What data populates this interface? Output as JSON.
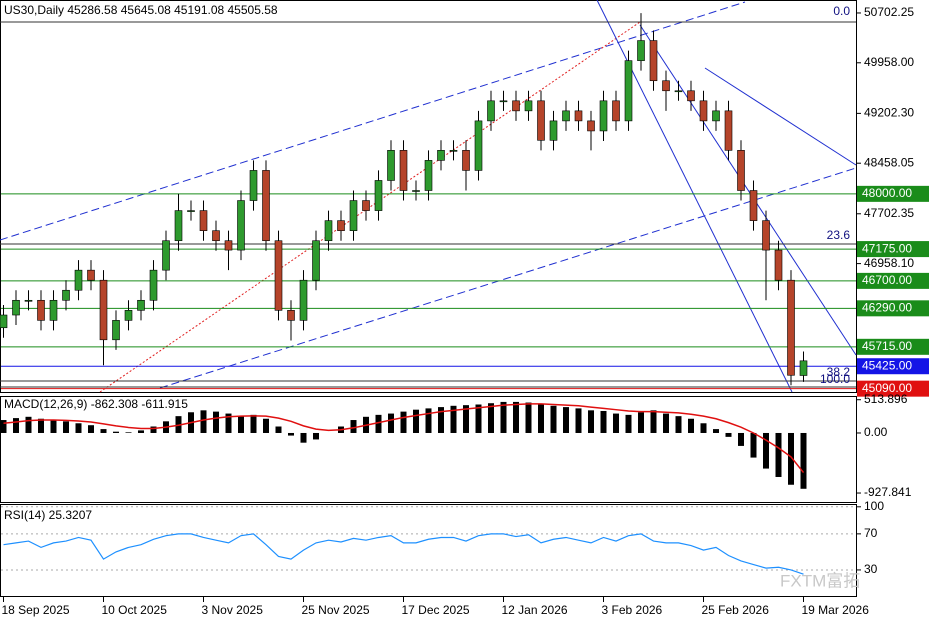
{
  "chart_data": [
    {
      "type": "candlestick",
      "title": "US30,Daily 45286.58 45645.08 45191.08 45505.58",
      "categories": [
        "18 Sep 2025",
        null,
        null,
        null,
        null,
        null,
        null,
        null,
        "10 Oct 2025",
        null,
        null,
        null,
        null,
        null,
        null,
        null,
        "3 Nov 2025",
        null,
        null,
        null,
        null,
        null,
        null,
        null,
        "25 Nov 2025",
        null,
        null,
        null,
        null,
        null,
        null,
        null,
        "17 Dec 2025",
        null,
        null,
        null,
        null,
        null,
        null,
        null,
        "12 Jan 2026",
        null,
        null,
        null,
        null,
        null,
        null,
        null,
        "3 Feb 2026",
        null,
        null,
        null,
        null,
        null,
        null,
        null,
        "25 Feb 2026",
        null,
        null,
        null,
        null,
        null,
        null,
        null,
        "19 Mar 2026"
      ],
      "open": [
        46000,
        46190,
        46410,
        46410,
        46110,
        46410,
        46560,
        46860,
        46710,
        45820,
        46110,
        46260,
        46410,
        46860,
        47300,
        47750,
        47750,
        47450,
        47300,
        47160,
        47900,
        48350,
        47300,
        46260,
        46110,
        46710,
        47300,
        47600,
        47450,
        47900,
        47750,
        48200,
        48650,
        48050,
        48050,
        48500,
        48650,
        48650,
        48350,
        49090,
        49390,
        49390,
        49240,
        49390,
        48800,
        49090,
        49240,
        49090,
        48940,
        49390,
        49090,
        49990,
        50290,
        49690,
        49540,
        49540,
        49390,
        49090,
        49240,
        48650,
        48050,
        47600,
        47160,
        46710,
        45286.58
      ],
      "high": [
        46340,
        46560,
        46560,
        46560,
        46560,
        46710,
        47010,
        47010,
        46860,
        46260,
        46410,
        46560,
        47010,
        47450,
        48000,
        47900,
        47900,
        47600,
        47450,
        48050,
        48500,
        48500,
        47450,
        46410,
        46860,
        47450,
        47750,
        47750,
        48050,
        48050,
        48350,
        48800,
        48800,
        48200,
        48650,
        48800,
        48800,
        48800,
        49240,
        49540,
        49540,
        49540,
        49540,
        49540,
        49240,
        49390,
        49390,
        49240,
        49540,
        49540,
        50140,
        50700,
        50440,
        49840,
        49690,
        49690,
        49540,
        49390,
        49390,
        48800,
        48200,
        47750,
        47300,
        46860,
        45645.08
      ],
      "low": [
        45850,
        46040,
        46260,
        45960,
        45960,
        46260,
        46410,
        46560,
        45440,
        45670,
        45960,
        46110,
        46260,
        46710,
        47150,
        47600,
        47300,
        47150,
        46860,
        47010,
        47750,
        47150,
        46110,
        45810,
        45960,
        46560,
        47150,
        47300,
        47300,
        47600,
        47600,
        48050,
        47900,
        47900,
        47900,
        48350,
        48500,
        48050,
        48200,
        48940,
        49240,
        49090,
        49090,
        48650,
        48650,
        48940,
        48940,
        48650,
        48790,
        48940,
        48940,
        49840,
        49540,
        49240,
        49390,
        49240,
        48940,
        48940,
        48500,
        47900,
        47450,
        46410,
        46560,
        45140,
        45191.08
      ],
      "close": [
        46190,
        46410,
        46410,
        46110,
        46410,
        46560,
        46860,
        46710,
        45820,
        46110,
        46260,
        46410,
        46860,
        47300,
        47750,
        47750,
        47450,
        47300,
        47160,
        47900,
        48350,
        47300,
        46260,
        46110,
        46710,
        47300,
        47600,
        47450,
        47900,
        47750,
        48200,
        48650,
        48050,
        48050,
        48500,
        48650,
        48650,
        48350,
        49090,
        49390,
        49390,
        49240,
        49390,
        48800,
        49090,
        49240,
        49090,
        48940,
        49390,
        49090,
        49990,
        50290,
        49690,
        49540,
        49540,
        49390,
        49090,
        49240,
        48650,
        48050,
        47600,
        47160,
        46710,
        45290,
        45505.58
      ],
      "up_color": "#2e9a2e",
      "down_color": "#b5442a",
      "ylim": [
        45040,
        50881
      ],
      "yticks": [
        50702.25,
        {
          "value": 49958,
          "label": "49958.00"
        },
        {
          "value": 49202.3,
          "label": "49202.30"
        },
        48458.05,
        47702.35,
        {
          "value": 46958.1,
          "label": "46958.10"
        }
      ],
      "levels": [
        {
          "value": 48000,
          "label": "48000.00",
          "color": "#1a8c1a"
        },
        {
          "value": 47175,
          "label": "47175.00",
          "color": "#1a8c1a"
        },
        {
          "value": 46700,
          "label": "46700.00",
          "color": "#1a8c1a"
        },
        {
          "value": 46290,
          "label": "46290.00",
          "color": "#1a8c1a"
        },
        {
          "value": 45715,
          "label": "45715.00",
          "color": "#1a8c1a"
        },
        {
          "value": 45425,
          "label": "45425.00",
          "color": "#1414e6"
        },
        {
          "value": 45090,
          "label": "45090.00",
          "color": "#e01010"
        }
      ],
      "fib_labels": [
        "0.0",
        "23.6",
        "38.2",
        "100.0"
      ],
      "watermark": "FXTM富拓"
    },
    {
      "type": "bar",
      "title": "MACD(12,26,9) -862.308 -611.915",
      "color": "#000000",
      "signal_color": "#e01010",
      "values": [
        200,
        230,
        250,
        220,
        200,
        180,
        150,
        120,
        60,
        20,
        10,
        40,
        100,
        180,
        260,
        320,
        350,
        330,
        300,
        270,
        280,
        220,
        100,
        -40,
        -150,
        -100,
        0,
        100,
        200,
        250,
        280,
        300,
        330,
        360,
        380,
        400,
        420,
        430,
        440,
        460,
        480,
        480,
        470,
        450,
        420,
        400,
        380,
        350,
        340,
        300,
        280,
        320,
        350,
        300,
        260,
        220,
        150,
        60,
        -60,
        -200,
        -380,
        -550,
        -680,
        -800,
        -862.308
      ],
      "signal": [
        150,
        170,
        190,
        200,
        200,
        195,
        185,
        170,
        140,
        110,
        85,
        70,
        70,
        90,
        120,
        160,
        200,
        230,
        250,
        260,
        265,
        260,
        230,
        180,
        110,
        60,
        40,
        50,
        80,
        120,
        160,
        200,
        240,
        270,
        300,
        330,
        350,
        370,
        390,
        410,
        430,
        440,
        450,
        450,
        440,
        430,
        420,
        400,
        380,
        360,
        340,
        330,
        330,
        320,
        310,
        290,
        260,
        220,
        160,
        90,
        0,
        -110,
        -230,
        -370,
        -611.915
      ],
      "ylim": [
        -1082,
        556
      ],
      "yticks": [
        513.896,
        {
          "value": 0,
          "label": "0.00"
        },
        -927.841
      ]
    },
    {
      "type": "line",
      "title": "RSI(14) 25.3207",
      "color": "#1e90ff",
      "values": [
        58,
        60,
        62,
        55,
        60,
        62,
        66,
        63,
        42,
        50,
        55,
        58,
        64,
        68,
        70,
        70,
        66,
        63,
        60,
        68,
        70,
        58,
        45,
        42,
        52,
        60,
        63,
        61,
        65,
        63,
        66,
        68,
        60,
        60,
        64,
        66,
        66,
        62,
        68,
        70,
        70,
        67,
        69,
        60,
        64,
        66,
        63,
        60,
        66,
        62,
        68,
        70,
        62,
        60,
        60,
        57,
        52,
        55,
        46,
        40,
        36,
        32,
        33,
        30,
        25.3207
      ],
      "ylim": [
        0,
        102
      ],
      "yticks": [
        100,
        70,
        30
      ]
    }
  ]
}
